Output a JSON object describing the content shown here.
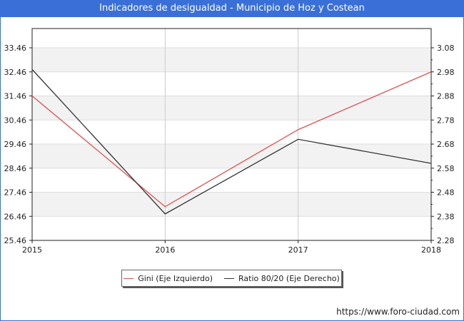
{
  "header": {
    "title": "Indicadores de desigualdad - Municipio de Hoz y Costean"
  },
  "chart_data": {
    "type": "line",
    "categories": [
      "2015",
      "2016",
      "2017",
      "2018"
    ],
    "series": [
      {
        "name": "Gini (Eje Izquierdo)",
        "axis": "left",
        "color": "#e05050",
        "values": [
          31.46,
          26.86,
          30.06,
          32.46
        ]
      },
      {
        "name": "Ratio 80/20 (Eje Derecho)",
        "axis": "right",
        "color": "#333333",
        "values": [
          2.99,
          2.39,
          2.7,
          2.6
        ]
      }
    ],
    "left_axis": {
      "ticks": [
        "25.46",
        "26.46",
        "27.46",
        "28.46",
        "29.46",
        "30.46",
        "31.46",
        "32.46",
        "33.46"
      ],
      "range": [
        25.46,
        34.26
      ]
    },
    "right_axis": {
      "ticks": [
        "2.28",
        "2.38",
        "2.48",
        "2.58",
        "2.68",
        "2.78",
        "2.88",
        "2.98",
        "3.08"
      ],
      "range": [
        2.28,
        3.16
      ]
    },
    "grid": true,
    "legend_position": "bottom-center"
  },
  "footer": {
    "source": "https://www.foro-ciudad.com"
  }
}
